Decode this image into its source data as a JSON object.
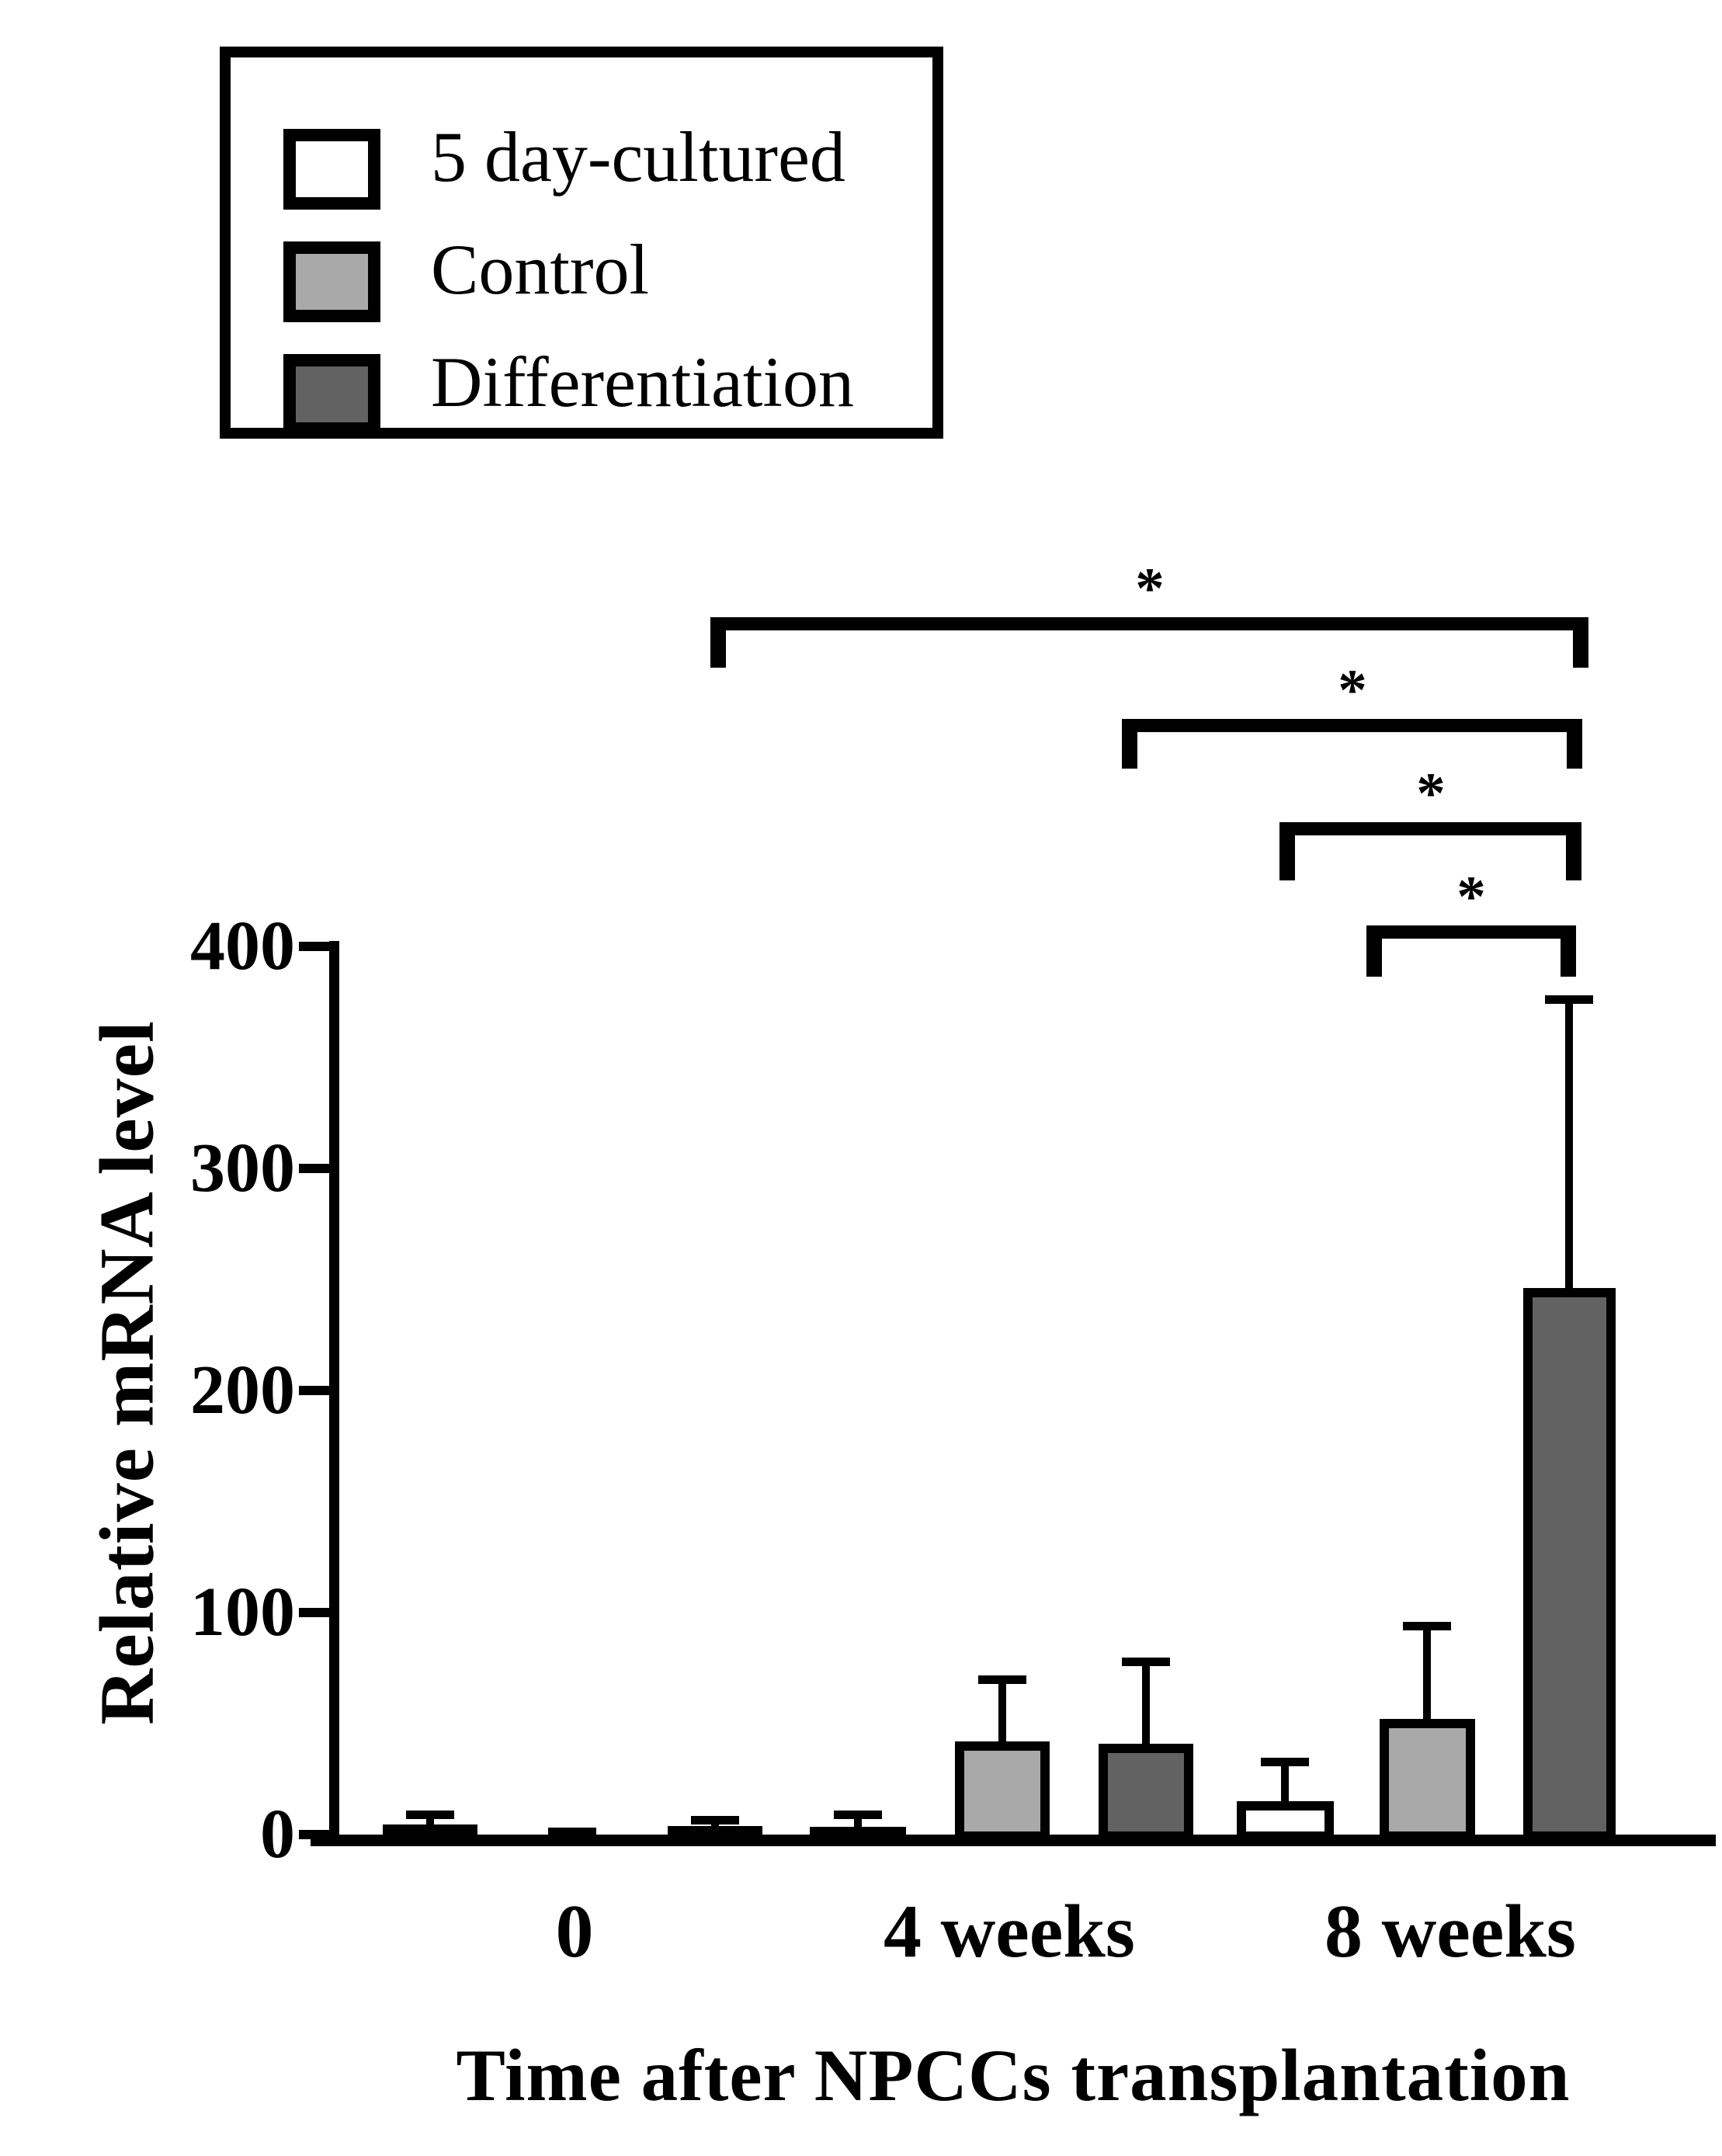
{
  "chart_data": {
    "type": "bar",
    "title": "",
    "xlabel": "Time after NPCCs transplantation",
    "ylabel": "Relative mRNA level",
    "ylim": [
      0,
      400
    ],
    "yticks": [
      400,
      300,
      200,
      100,
      0
    ],
    "categories": [
      "0",
      "4 weeks",
      "8 weeks"
    ],
    "series": [
      {
        "name": "5 day-cultured",
        "fill": "#ffffff",
        "values": [
          4.5,
          3.5,
          15
        ],
        "err_plus": [
          4.5,
          5.5,
          18
        ]
      },
      {
        "name": "Control",
        "fill": "#a9a9a9",
        "values": [
          3,
          42,
          52
        ],
        "err_plus": [
          0,
          28,
          42
        ]
      },
      {
        "name": "Differentiation",
        "fill": "#626262",
        "values": [
          4,
          41,
          246
        ],
        "err_plus": [
          2.5,
          37,
          130
        ]
      }
    ],
    "legend_entries": [
      "5 day-cultured",
      "Control",
      "Differentiation"
    ],
    "legend_position": "top-left",
    "grid": false,
    "error_bars": "upper only",
    "significance": [
      {
        "label": "*",
        "between": [
          "0 / Differentiation",
          "8 weeks / Differentiation"
        ]
      },
      {
        "label": "*",
        "between": [
          "4 weeks / Differentiation",
          "8 weeks / Differentiation"
        ]
      },
      {
        "label": "*",
        "between": [
          "8 weeks / 5 day-cultured",
          "8 weeks / Differentiation"
        ]
      },
      {
        "label": "*",
        "between": [
          "8 weeks / Control",
          "8 weeks / Differentiation"
        ]
      }
    ]
  },
  "colors": {
    "axis": "#000000",
    "background": "#ffffff",
    "bar_border": "#000000",
    "control_gray": "#a9a9a9",
    "differentiation_gray": "#626262",
    "culture_white": "#ffffff"
  }
}
